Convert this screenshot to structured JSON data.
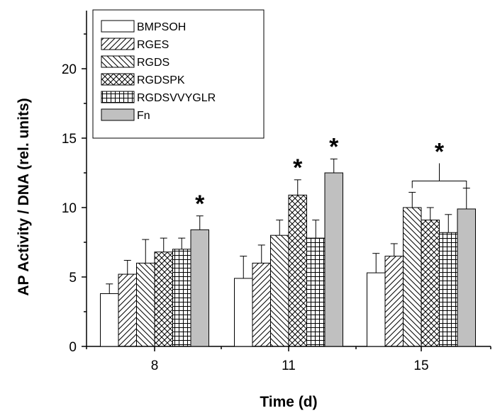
{
  "chart_data": {
    "type": "bar",
    "xlabel": "Time (d)",
    "ylabel": "AP Activity / DNA (rel. units)",
    "ylim": [
      0,
      25
    ],
    "yticks": [
      0,
      5,
      10,
      15,
      20
    ],
    "categories": [
      "8",
      "11",
      "15"
    ],
    "grid": false,
    "legend_position": "top-left",
    "series": [
      {
        "name": "BMPSOH",
        "pattern": "empty",
        "values": [
          3.8,
          4.9,
          5.3
        ],
        "errors": [
          0.7,
          1.6,
          1.4
        ]
      },
      {
        "name": "RGES",
        "pattern": "forward-diagonal",
        "values": [
          5.2,
          6.0,
          6.5
        ],
        "errors": [
          1.0,
          1.3,
          0.9
        ]
      },
      {
        "name": "RGDS",
        "pattern": "back-diagonal",
        "values": [
          6.0,
          8.0,
          10.0
        ],
        "errors": [
          1.7,
          1.1,
          1.1
        ]
      },
      {
        "name": "RGDSPK",
        "pattern": "cross-diagonal",
        "values": [
          6.8,
          10.9,
          9.1
        ],
        "errors": [
          1.0,
          1.1,
          0.9
        ]
      },
      {
        "name": "RGDSVVYGLR",
        "pattern": "grid",
        "values": [
          7.0,
          7.8,
          8.2
        ],
        "errors": [
          0.8,
          1.3,
          1.3
        ]
      },
      {
        "name": "Fn",
        "pattern": "gray",
        "fill": "#c0c0c0",
        "values": [
          8.4,
          12.5,
          9.9
        ],
        "errors": [
          1.0,
          1.0,
          1.5
        ]
      }
    ],
    "annotations": [
      {
        "text": "*",
        "category": "8",
        "series": "Fn"
      },
      {
        "text": "*",
        "category": "11",
        "series": "RGDSPK"
      },
      {
        "text": "*",
        "category": "11",
        "series": "Fn"
      },
      {
        "text": "*",
        "category": "15",
        "series_range": [
          "RGDS",
          "Fn"
        ]
      }
    ]
  }
}
